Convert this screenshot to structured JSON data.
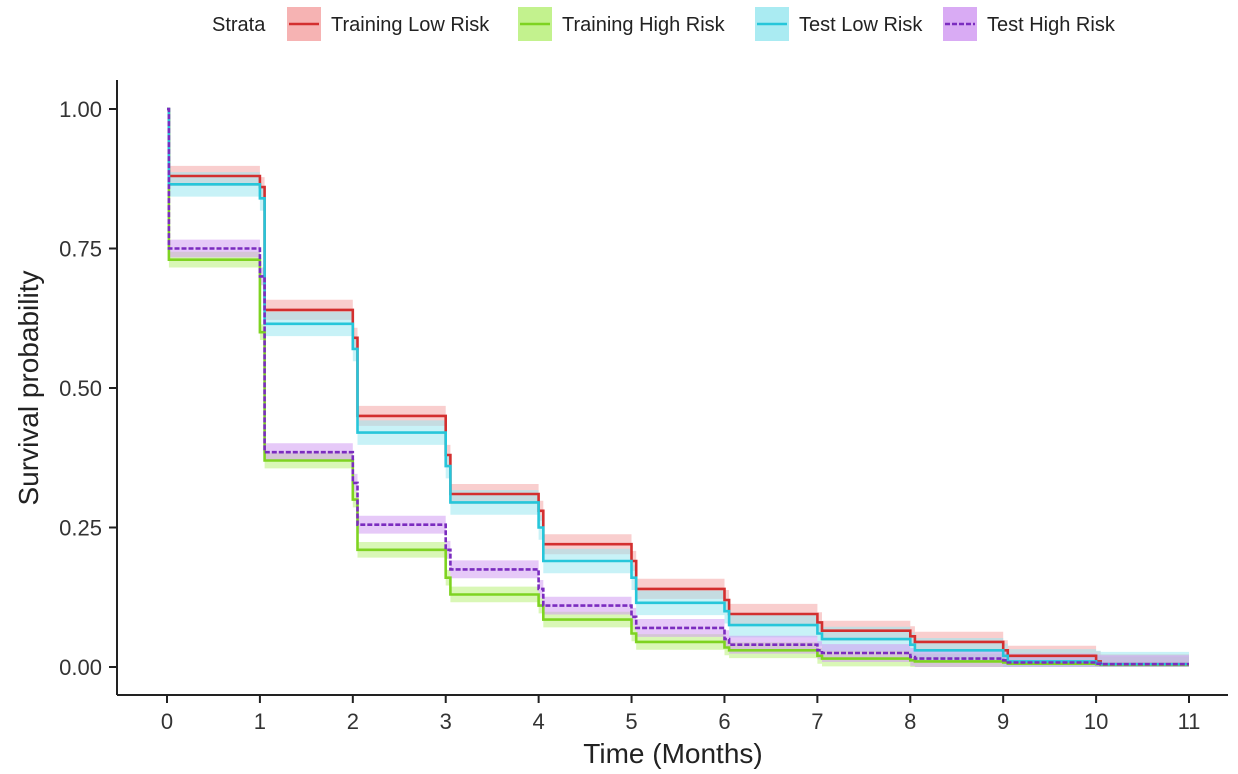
{
  "chart_data": {
    "type": "line",
    "step": true,
    "xlabel": "Time (Months)",
    "ylabel": "Survival probability",
    "xlim": [
      0,
      11
    ],
    "ylim": [
      0,
      1
    ],
    "x_ticks": [
      "0",
      "1",
      "2",
      "3",
      "4",
      "5",
      "6",
      "7",
      "8",
      "9",
      "10",
      "11"
    ],
    "y_ticks": [
      "0.00",
      "0.25",
      "0.50",
      "0.75",
      "1.00"
    ],
    "grid": false,
    "confidence_bands": true,
    "legend": {
      "title": "Strata",
      "position": "top",
      "entries": [
        "Training Low Risk",
        "Training High Risk",
        "Test Low Risk",
        "Test High Risk"
      ]
    },
    "series": [
      {
        "name": "Training Low Risk",
        "color": "#d32f2f",
        "band_color": "#f4a6a6",
        "dashed": false,
        "x": [
          0,
          0.02,
          0.9,
          1.0,
          1.05,
          1.95,
          2.0,
          2.05,
          2.95,
          3.0,
          3.05,
          3.95,
          4.0,
          4.05,
          4.95,
          5.0,
          5.05,
          5.95,
          6.0,
          6.05,
          6.95,
          7.0,
          7.05,
          7.95,
          8.0,
          8.05,
          8.95,
          9.0,
          9.05,
          9.95,
          10.0,
          10.05,
          11
        ],
        "y": [
          1.0,
          0.88,
          0.88,
          0.86,
          0.64,
          0.64,
          0.59,
          0.45,
          0.45,
          0.38,
          0.31,
          0.31,
          0.28,
          0.22,
          0.22,
          0.19,
          0.14,
          0.14,
          0.12,
          0.095,
          0.095,
          0.08,
          0.065,
          0.065,
          0.055,
          0.045,
          0.045,
          0.03,
          0.02,
          0.02,
          0.01,
          0.005,
          0.005
        ],
        "band_halfwidth": 0.018
      },
      {
        "name": "Training High Risk",
        "color": "#7ed321",
        "band_color": "#b9f07a",
        "dashed": false,
        "x": [
          0,
          0.02,
          0.9,
          1.0,
          1.05,
          1.95,
          2.0,
          2.05,
          2.95,
          3.0,
          3.05,
          3.95,
          4.0,
          4.05,
          4.95,
          5.0,
          5.05,
          5.95,
          6.0,
          6.05,
          6.95,
          7.0,
          7.05,
          7.95,
          8.0,
          8.05,
          8.95,
          9.0,
          9.05,
          9.95,
          10.0,
          10.05,
          11
        ],
        "y": [
          1.0,
          0.73,
          0.73,
          0.6,
          0.37,
          0.37,
          0.3,
          0.21,
          0.21,
          0.16,
          0.13,
          0.13,
          0.11,
          0.085,
          0.085,
          0.06,
          0.045,
          0.045,
          0.035,
          0.03,
          0.03,
          0.02,
          0.015,
          0.015,
          0.012,
          0.01,
          0.01,
          0.008,
          0.006,
          0.006,
          0.005,
          0.004,
          0.004
        ],
        "band_halfwidth": 0.014
      },
      {
        "name": "Test Low Risk",
        "color": "#26c6da",
        "band_color": "#9be7f0",
        "dashed": false,
        "x": [
          0,
          0.02,
          0.9,
          1.0,
          1.05,
          1.95,
          2.0,
          2.05,
          2.95,
          3.0,
          3.05,
          3.95,
          4.0,
          4.05,
          4.95,
          5.0,
          5.05,
          5.95,
          6.0,
          6.05,
          6.95,
          7.0,
          7.05,
          7.95,
          8.0,
          8.05,
          8.95,
          9.0,
          9.05,
          9.95,
          10.0,
          10.05,
          11
        ],
        "y": [
          1.0,
          0.865,
          0.865,
          0.84,
          0.615,
          0.615,
          0.57,
          0.42,
          0.42,
          0.36,
          0.295,
          0.295,
          0.25,
          0.19,
          0.19,
          0.16,
          0.115,
          0.115,
          0.1,
          0.075,
          0.075,
          0.06,
          0.05,
          0.05,
          0.04,
          0.03,
          0.03,
          0.02,
          0.01,
          0.01,
          0.007,
          0.005,
          0.005
        ],
        "band_halfwidth": 0.022
      },
      {
        "name": "Test High Risk",
        "color": "#7b2cbf",
        "band_color": "#d29cf2",
        "dashed": true,
        "x": [
          0,
          0.02,
          0.9,
          1.0,
          1.05,
          1.95,
          2.0,
          2.05,
          2.95,
          3.0,
          3.05,
          3.95,
          4.0,
          4.05,
          4.95,
          5.0,
          5.05,
          5.95,
          6.0,
          6.05,
          6.95,
          7.0,
          7.05,
          7.95,
          8.0,
          8.05,
          8.95,
          9.0,
          9.05,
          9.95,
          10.0,
          10.05,
          11
        ],
        "y": [
          1.0,
          0.75,
          0.75,
          0.7,
          0.385,
          0.385,
          0.33,
          0.255,
          0.255,
          0.21,
          0.175,
          0.175,
          0.14,
          0.11,
          0.11,
          0.09,
          0.07,
          0.07,
          0.05,
          0.04,
          0.04,
          0.03,
          0.025,
          0.025,
          0.018,
          0.015,
          0.015,
          0.012,
          0.008,
          0.008,
          0.006,
          0.005,
          0.005
        ],
        "band_halfwidth": 0.016
      }
    ]
  }
}
